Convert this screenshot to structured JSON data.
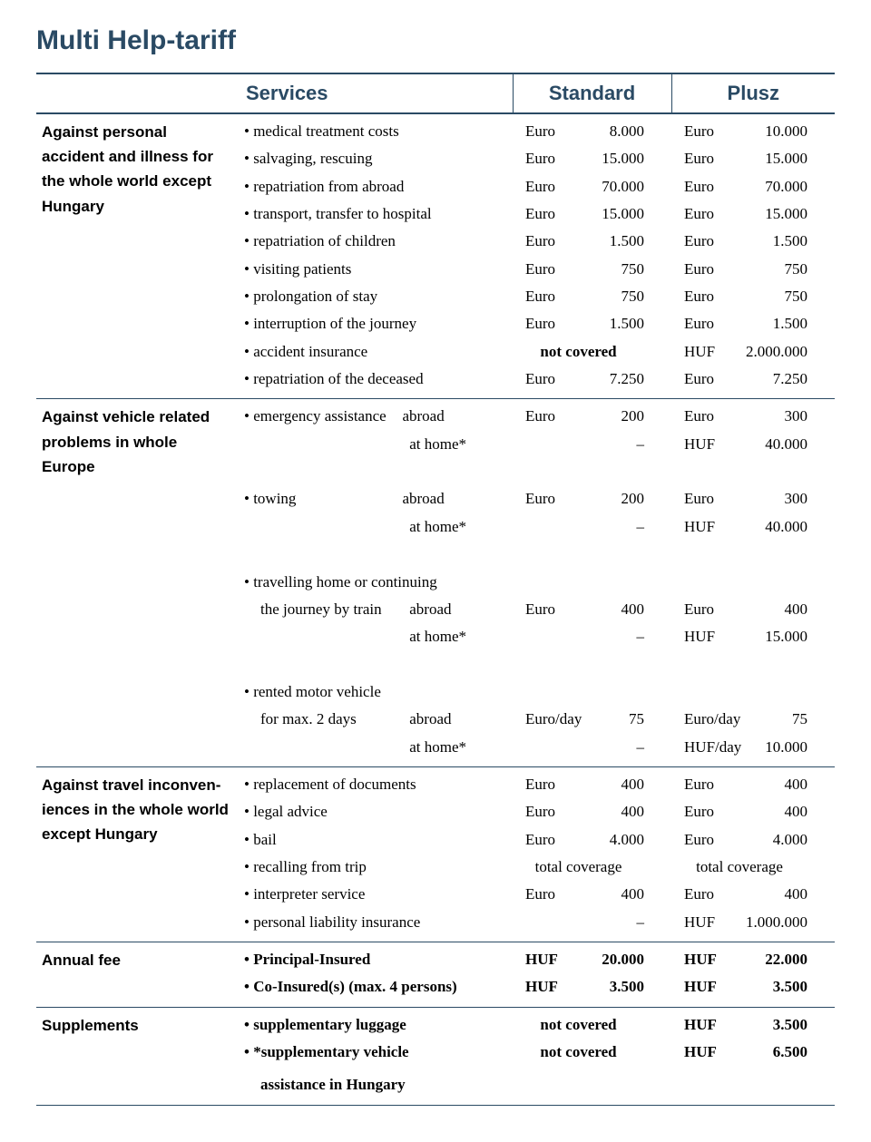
{
  "title": "Multi Help-tariff",
  "headers": {
    "services": "Services",
    "standard": "Standard",
    "plusz": "Plusz"
  },
  "sections": [
    {
      "category": "Against personal accident and illness for the whole world except Hungary",
      "rows": [
        {
          "label": "medical treatment costs",
          "std_cur": "Euro",
          "std_val": "8.000",
          "plu_cur": "Euro",
          "plu_val": "10.000"
        },
        {
          "label": "salvaging, rescuing",
          "std_cur": "Euro",
          "std_val": "15.000",
          "plu_cur": "Euro",
          "plu_val": "15.000"
        },
        {
          "label": "repatriation from abroad",
          "std_cur": "Euro",
          "std_val": "70.000",
          "plu_cur": "Euro",
          "plu_val": "70.000"
        },
        {
          "label": "transport, transfer to hospital",
          "std_cur": "Euro",
          "std_val": "15.000",
          "plu_cur": "Euro",
          "plu_val": "15.000"
        },
        {
          "label": "repatriation of children",
          "std_cur": "Euro",
          "std_val": "1.500",
          "plu_cur": "Euro",
          "plu_val": "1.500"
        },
        {
          "label": "visiting patients",
          "std_cur": "Euro",
          "std_val": "750",
          "plu_cur": "Euro",
          "plu_val": "750"
        },
        {
          "label": "prolongation of stay",
          "std_cur": "Euro",
          "std_val": "750",
          "plu_cur": "Euro",
          "plu_val": "750"
        },
        {
          "label": "interruption of the journey",
          "std_cur": "Euro",
          "std_val": "1.500",
          "plu_cur": "Euro",
          "plu_val": "1.500"
        },
        {
          "label": "accident insurance",
          "std_span": "not covered",
          "std_bold": true,
          "plu_cur": "HUF",
          "plu_val": "2.000.000"
        },
        {
          "label": "repatriation of the deceased",
          "std_cur": "Euro",
          "std_val": "7.250",
          "plu_cur": "Euro",
          "plu_val": "7.250"
        }
      ]
    },
    {
      "category": "Against vehicle related problems in whole Europe",
      "groups": [
        {
          "lead": "emergency assistance",
          "rows": [
            {
              "sub": "abroad",
              "std_cur": "Euro",
              "std_val": "200",
              "plu_cur": "Euro",
              "plu_val": "300"
            },
            {
              "sub": "at home*",
              "std_cur": "",
              "std_val": "–",
              "plu_cur": "HUF",
              "plu_val": "40.000"
            }
          ]
        },
        {
          "lead": "towing",
          "rows": [
            {
              "sub": "abroad",
              "std_cur": "Euro",
              "std_val": "200",
              "plu_cur": "Euro",
              "plu_val": "300"
            },
            {
              "sub": "at home*",
              "std_cur": "",
              "std_val": "–",
              "plu_cur": "HUF",
              "plu_val": "40.000"
            }
          ]
        },
        {
          "lead": "travelling home or continuing",
          "lead2": "the journey by train",
          "rows": [
            {
              "sub": "abroad",
              "std_cur": "Euro",
              "std_val": "400",
              "plu_cur": "Euro",
              "plu_val": "400"
            },
            {
              "sub": "at home*",
              "std_cur": "",
              "std_val": "–",
              "plu_cur": "HUF",
              "plu_val": "15.000"
            }
          ]
        },
        {
          "lead": "rented motor vehicle",
          "lead2": "for max. 2 days",
          "rows": [
            {
              "sub": "abroad",
              "std_cur": "Euro/day",
              "std_val": "75",
              "plu_cur": "Euro/day",
              "plu_val": "75"
            },
            {
              "sub": "at home*",
              "std_cur": "",
              "std_val": "–",
              "plu_cur": "HUF/day",
              "plu_val": "10.000"
            }
          ]
        }
      ]
    },
    {
      "category": "Against travel inconven-iences in the whole world except Hungary",
      "rows": [
        {
          "label": "replacement of documents",
          "std_cur": "Euro",
          "std_val": "400",
          "plu_cur": "Euro",
          "plu_val": "400"
        },
        {
          "label": "legal advice",
          "std_cur": "Euro",
          "std_val": "400",
          "plu_cur": "Euro",
          "plu_val": "400"
        },
        {
          "label": "bail",
          "std_cur": "Euro",
          "std_val": "4.000",
          "plu_cur": "Euro",
          "plu_val": "4.000"
        },
        {
          "label": "recalling from trip",
          "std_span": "total coverage",
          "plu_span": "total coverage"
        },
        {
          "label": "interpreter service",
          "std_cur": "Euro",
          "std_val": "400",
          "plu_cur": "Euro",
          "plu_val": "400"
        },
        {
          "label": "personal liability insurance",
          "std_cur": "",
          "std_val": "–",
          "plu_cur": "HUF",
          "plu_val": "1.000.000"
        }
      ]
    },
    {
      "category": "Annual fee",
      "rows": [
        {
          "label": "Principal-Insured",
          "bold": true,
          "std_cur": "HUF",
          "std_val": "20.000",
          "std_bold": true,
          "plu_cur": "HUF",
          "plu_val": "22.000",
          "plu_bold": true
        },
        {
          "label": "Co-Insured(s) (max. 4 persons)",
          "bold": true,
          "std_cur": "HUF",
          "std_val": "3.500",
          "std_bold": true,
          "plu_cur": "HUF",
          "plu_val": "3.500",
          "plu_bold": true
        }
      ]
    },
    {
      "category": "Supplements",
      "rows": [
        {
          "label": "supplementary luggage",
          "bold": true,
          "std_span": "not covered",
          "std_bold": true,
          "plu_cur": "HUF",
          "plu_val": "3.500",
          "plu_bold": true
        },
        {
          "label": "*supplementary vehicle",
          "label2": "assistance in Hungary",
          "bold": true,
          "std_span": "not covered",
          "std_bold": true,
          "plu_cur": "HUF",
          "plu_val": "6.500",
          "plu_bold": true
        }
      ]
    }
  ]
}
